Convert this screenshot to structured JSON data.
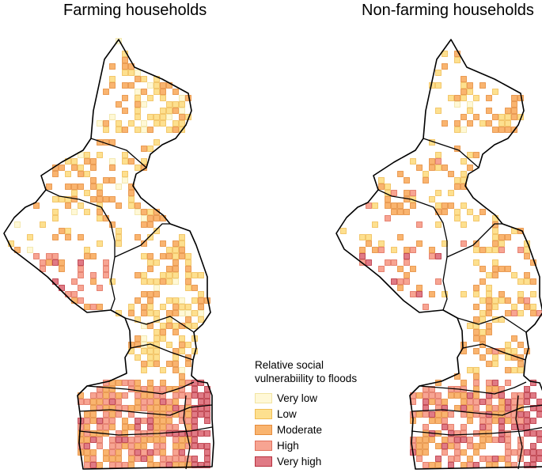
{
  "panels": [
    {
      "title": "Farming households"
    },
    {
      "title": "Non-farming households"
    }
  ],
  "legend": {
    "title_line1": "Relative social",
    "title_line2": "vulnerabiility to floods",
    "items": [
      {
        "label": "Very low",
        "fill": "#fff8d6",
        "stroke": "#f1e4a2"
      },
      {
        "label": "Low",
        "fill": "#fde08f",
        "stroke": "#f0bd55"
      },
      {
        "label": "Moderate",
        "fill": "#f9b46f",
        "stroke": "#e58c3c"
      },
      {
        "label": "High",
        "fill": "#f7a492",
        "stroke": "#e0705d"
      },
      {
        "label": "Very high",
        "fill": "#e07a85",
        "stroke": "#b8323f"
      }
    ]
  },
  "colors": {
    "boundary": "#000000"
  }
}
